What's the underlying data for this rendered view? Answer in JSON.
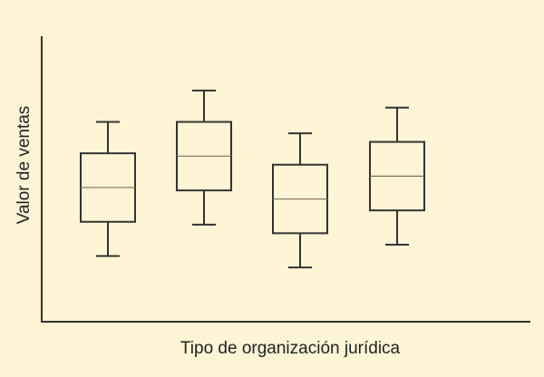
{
  "chart_data": {
    "type": "box",
    "title": "",
    "xlabel": "Tipo de organización jurídica",
    "ylabel": "Valor de ventas",
    "ylim": [
      0,
      100
    ],
    "categories": [
      "",
      "",
      "",
      ""
    ],
    "boxes": [
      {
        "min": 23,
        "q1": 35,
        "median": 47,
        "q3": 59,
        "max": 70
      },
      {
        "min": 34,
        "q1": 46,
        "median": 58,
        "q3": 70,
        "max": 81
      },
      {
        "min": 19,
        "q1": 31,
        "median": 43,
        "q3": 55,
        "max": 66
      },
      {
        "min": 27,
        "q1": 39,
        "median": 51,
        "q3": 63,
        "max": 75
      }
    ],
    "grid": false,
    "legend": "none",
    "colors": {
      "background": "#fff4d6",
      "line": "#333333",
      "median": "#7a6f5f"
    }
  }
}
